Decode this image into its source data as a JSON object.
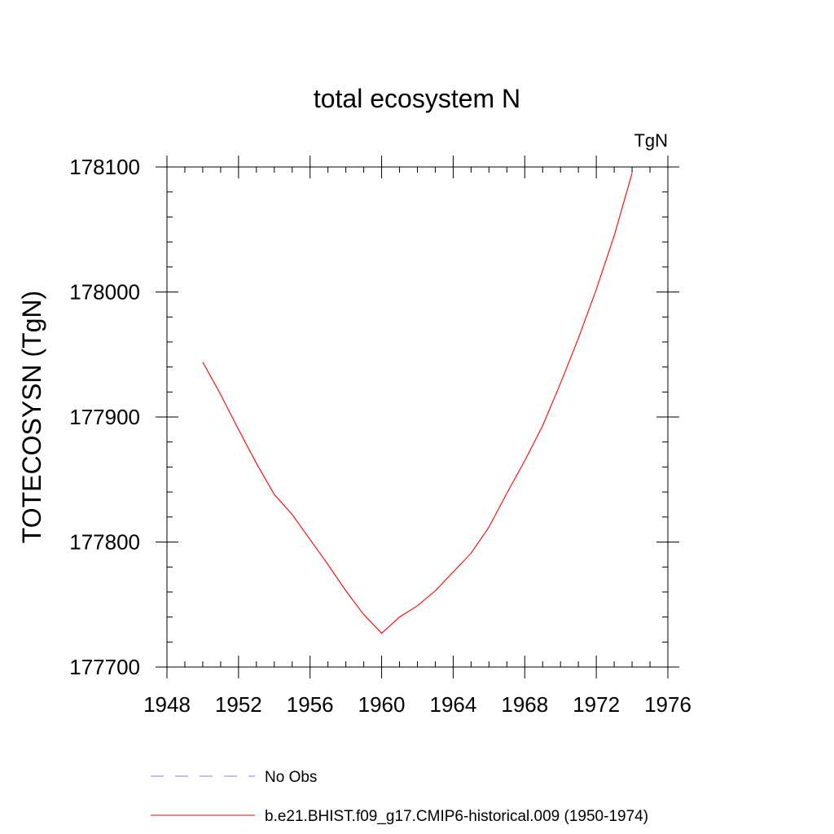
{
  "chart_data": {
    "type": "line",
    "title": "total ecosystem N",
    "units_label": "TgN",
    "xlabel": "",
    "ylabel": "TOTECOSYSN  (TgN)",
    "xlim": [
      1948,
      1976
    ],
    "ylim": [
      177700,
      178100
    ],
    "x_ticks": [
      1948,
      1952,
      1956,
      1960,
      1964,
      1968,
      1972,
      1976
    ],
    "y_ticks": [
      177700,
      177800,
      177900,
      178000,
      178100
    ],
    "x_tick_labels": [
      "1948",
      "1952",
      "1956",
      "1960",
      "1964",
      "1968",
      "1972",
      "1976"
    ],
    "y_tick_labels": [
      "177700",
      "177800",
      "177900",
      "178000",
      "178100"
    ],
    "x_minor_step": 1,
    "y_minor_step": 20,
    "grid": false,
    "legend_position": "bottom",
    "series": [
      {
        "name": "b.e21.BHIST.f09_g17.CMIP6-historical.009 (1950-1974)",
        "color": "#ff0000",
        "dash": "solid",
        "x": [
          1950,
          1951,
          1952,
          1953,
          1954,
          1955,
          1956,
          1957,
          1958,
          1959,
          1960,
          1961,
          1962,
          1963,
          1964,
          1965,
          1966,
          1967,
          1968,
          1969,
          1970,
          1971,
          1972,
          1973,
          1974
        ],
        "values": [
          177944,
          177918,
          177890,
          177863,
          177838,
          177822,
          177802,
          177782,
          177761,
          177742,
          177727,
          177740,
          177749,
          177761,
          177776,
          177791,
          177812,
          177839,
          177865,
          177893,
          177927,
          177963,
          178002,
          178045,
          178095
        ]
      }
    ],
    "legend": [
      {
        "label": "No Obs",
        "color": "#8a80c8",
        "dash": "dashed"
      },
      {
        "label": "b.e21.BHIST.f09_g17.CMIP6-historical.009 (1950-1974)",
        "color": "#ff0000",
        "dash": "solid"
      }
    ]
  }
}
